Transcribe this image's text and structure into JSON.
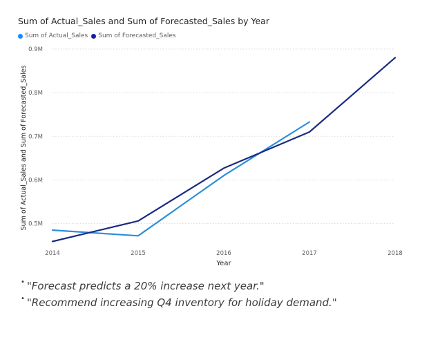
{
  "chart_data": {
    "type": "line",
    "title": "Sum of Actual_Sales and Sum of Forecasted_Sales by Year",
    "xlabel": "Year",
    "ylabel": "Sum of Actual_Sales and Sum of Forecasted_Sales",
    "x": [
      2014,
      2015,
      2016,
      2017,
      2018
    ],
    "x_tick_labels": [
      "2014",
      "2015",
      "2016",
      "2017",
      "2018"
    ],
    "y_ticks": [
      0.5,
      0.6,
      0.7,
      0.8,
      0.9
    ],
    "y_tick_labels": [
      "0.5M",
      "0.6M",
      "0.7M",
      "0.8M",
      "0.9M"
    ],
    "ylim": [
      0.455,
      0.9
    ],
    "xlim": [
      2014,
      2018
    ],
    "grid": true,
    "legend_position": "top-left",
    "series": [
      {
        "name": "Sum of Actual_Sales",
        "color": "#118DFF",
        "line_color": "#2B8FDB",
        "values": [
          0.485,
          0.472,
          0.61,
          0.733,
          null
        ]
      },
      {
        "name": "Sum of Forecasted_Sales",
        "color": "#12239E",
        "line_color": "#1A2A80",
        "values": [
          0.459,
          0.506,
          0.627,
          0.71,
          0.88
        ]
      }
    ]
  },
  "notes": [
    "\"Forecast predicts a 20% increase next year.\"",
    "\"Recommend increasing Q4 inventory for holiday demand.\""
  ],
  "bullet_symbol": "•"
}
